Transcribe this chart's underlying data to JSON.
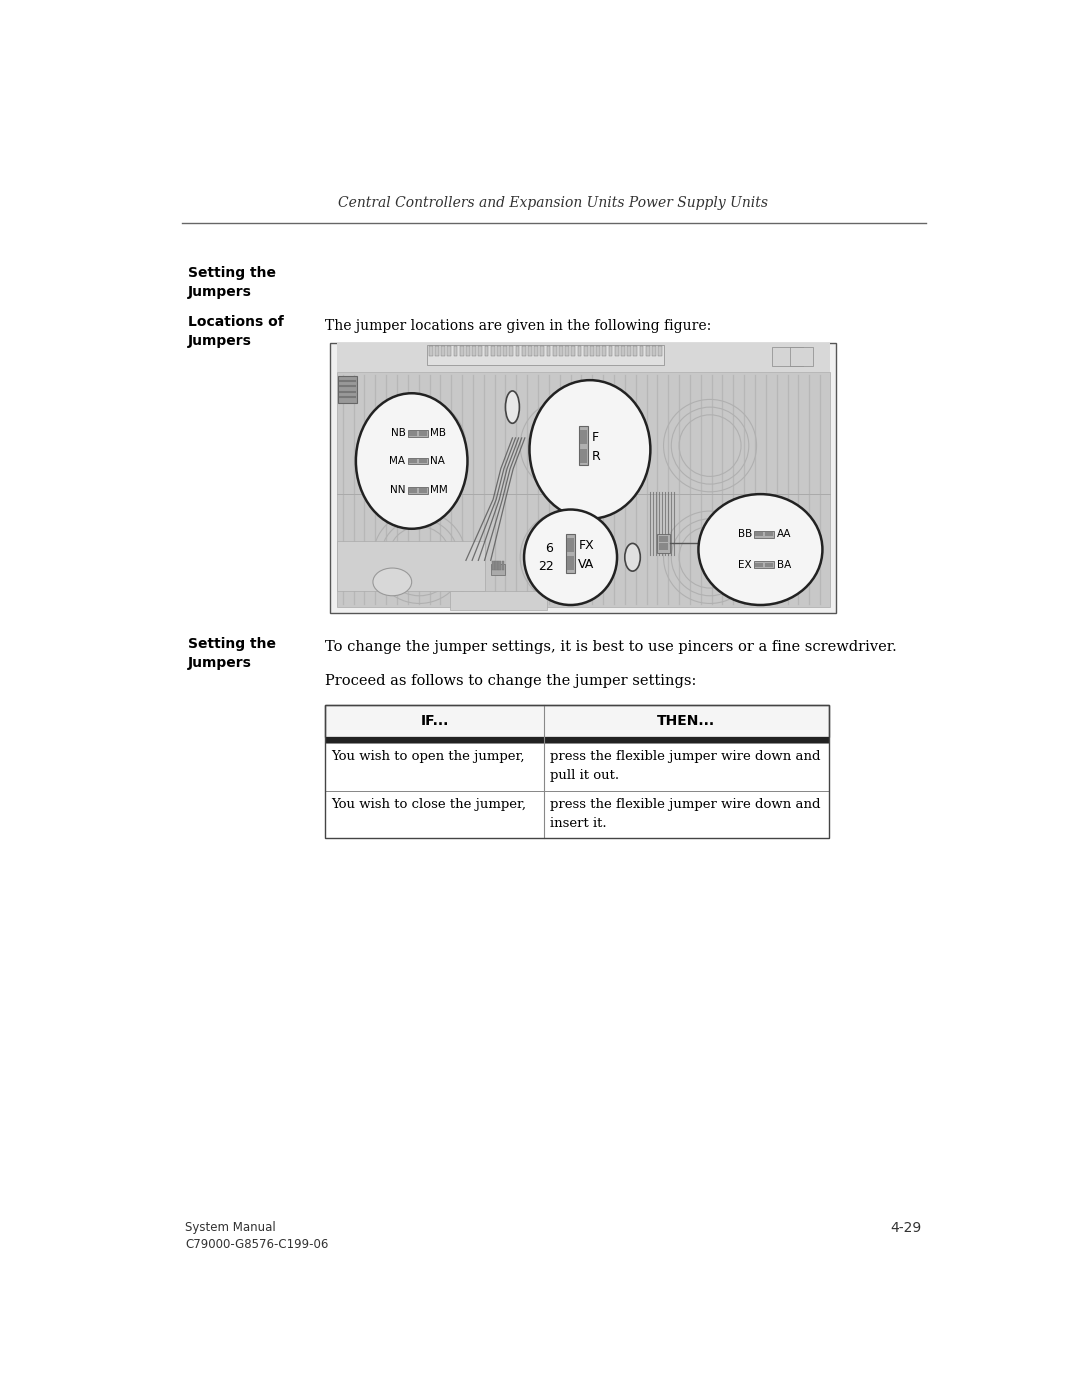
{
  "header_text": "Central Controllers and Expansion Units Power Supply Units",
  "section1_bold": "Setting the\nJumpers",
  "section2_bold": "Locations of\nJumpers",
  "locations_text": "The jumper locations are given in the following figure:",
  "section3_bold": "Setting the\nJumpers",
  "setting_text1": "To change the jumper settings, it is best to use pincers or a fine screwdriver.",
  "setting_text2": "Proceed as follows to change the jumper settings:",
  "table_header_if": "IF...",
  "table_header_then": "THEN...",
  "table_row1_if": "You wish to open the jumper,",
  "table_row1_then": "press the flexible jumper wire down and\npull it out.",
  "table_row2_if": "You wish to close the jumper,",
  "table_row2_then": "press the flexible jumper wire down and\ninsert it.",
  "footer_left": "System Manual\nC79000-G8576-C199-06",
  "footer_right": "4-29",
  "bg_color": "#ffffff"
}
